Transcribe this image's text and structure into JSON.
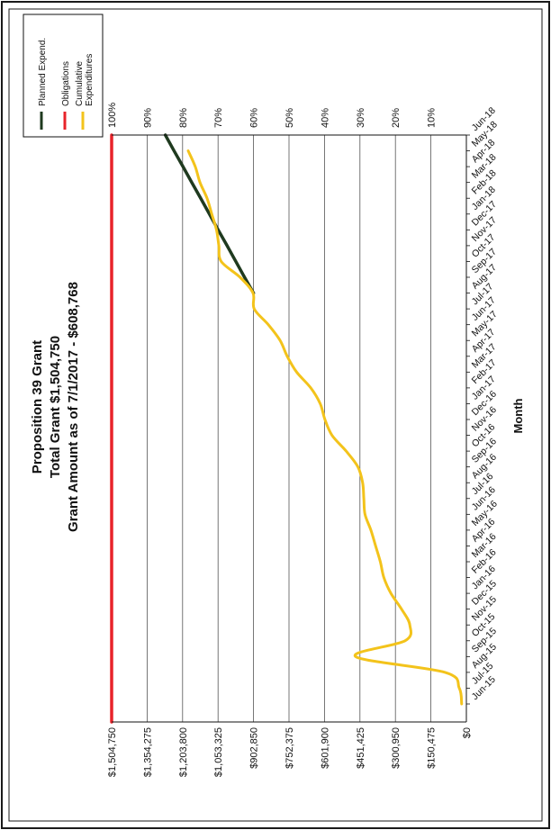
{
  "chart_data": {
    "type": "line",
    "title": "Proposition 39 Grant",
    "subtitle_1": "Total Grant  $1,504,750",
    "subtitle_2": "Grant Amount as of 7/1/2017  - $608,768",
    "xlabel": "Month",
    "ylabel": "",
    "categories": [
      "Jun-15",
      "Jul-15",
      "Aug-15",
      "Sep-15",
      "Oct-15",
      "Nov-15",
      "Dec-15",
      "Jan-16",
      "Feb-16",
      "Mar-16",
      "Apr-16",
      "May-16",
      "Jun-16",
      "Jul-16",
      "Aug-16",
      "Sep-16",
      "Oct-16",
      "Nov-16",
      "Dec-16",
      "Jan-17",
      "Feb-17",
      "Mar-17",
      "Apr-17",
      "May-17",
      "Jun-17",
      "Jul-17",
      "Aug-17",
      "Sep-17",
      "Oct-17",
      "Nov-17",
      "Dec-17",
      "Jan-18",
      "Feb-18",
      "Mar-18",
      "Apr-18",
      "May-18",
      "Jun-18"
    ],
    "y_tick_labels": [
      "$0",
      "$150,475",
      "$300,950",
      "$451,425",
      "$601,900",
      "$752,375",
      "$902,850",
      "$1,053,325",
      "$1,203,800",
      "$1,354,275",
      "$1,504,750"
    ],
    "y_percent_labels": [
      "",
      "10%",
      "20%",
      "30%",
      "40%",
      "50%",
      "60%",
      "70%",
      "80%",
      "90%",
      "100%"
    ],
    "ylim": [
      0,
      1504750
    ],
    "grid": true,
    "legend_position": "top-right",
    "series": [
      {
        "name": "Planned Expend.",
        "color": "#1f3a1f",
        "x": [
          "Aug-17",
          "Sep-17",
          "Oct-17",
          "Nov-17",
          "Dec-17",
          "Jan-18",
          "Feb-18",
          "Mar-18",
          "Apr-18",
          "May-18",
          "Jun-18"
        ],
        "values": [
          902850,
          941000,
          978000,
          1015000,
          1053000,
          1090000,
          1127000,
          1165000,
          1202000,
          1240000,
          1277000
        ]
      },
      {
        "name": "Obligations",
        "color": "#e8232a",
        "x": [
          "Jun-15",
          "Jun-18"
        ],
        "values": [
          1504750,
          1504750
        ]
      },
      {
        "name": "Cumulative\nExpenditures",
        "color": "#f3c31b",
        "x": [
          "Jun-15",
          "Jul-15",
          "Aug-15",
          "Sep-15",
          "Oct-15",
          "Nov-15",
          "Dec-15",
          "Jan-16",
          "Feb-16",
          "Mar-16",
          "Apr-16",
          "May-16",
          "Jun-16",
          "Jul-16",
          "Aug-16",
          "Sep-16",
          "Oct-16",
          "Nov-16",
          "Dec-16",
          "Jan-17",
          "Feb-17",
          "Mar-17",
          "Apr-17",
          "May-17",
          "Jun-17",
          "Jul-17",
          "Aug-17",
          "Sep-17",
          "Oct-17",
          "Nov-17",
          "Dec-17",
          "Jan-18",
          "Feb-18",
          "Mar-18",
          "Apr-18",
          "May-18"
        ],
        "values": [
          20000,
          30000,
          90000,
          470000,
          260000,
          240000,
          275000,
          320000,
          350000,
          365000,
          385000,
          405000,
          430000,
          435000,
          440000,
          460000,
          510000,
          570000,
          600000,
          620000,
          660000,
          720000,
          760000,
          790000,
          840000,
          900000,
          905000,
          960000,
          1040000,
          1050000,
          1060000,
          1080000,
          1100000,
          1130000,
          1150000,
          1180000
        ]
      }
    ]
  }
}
